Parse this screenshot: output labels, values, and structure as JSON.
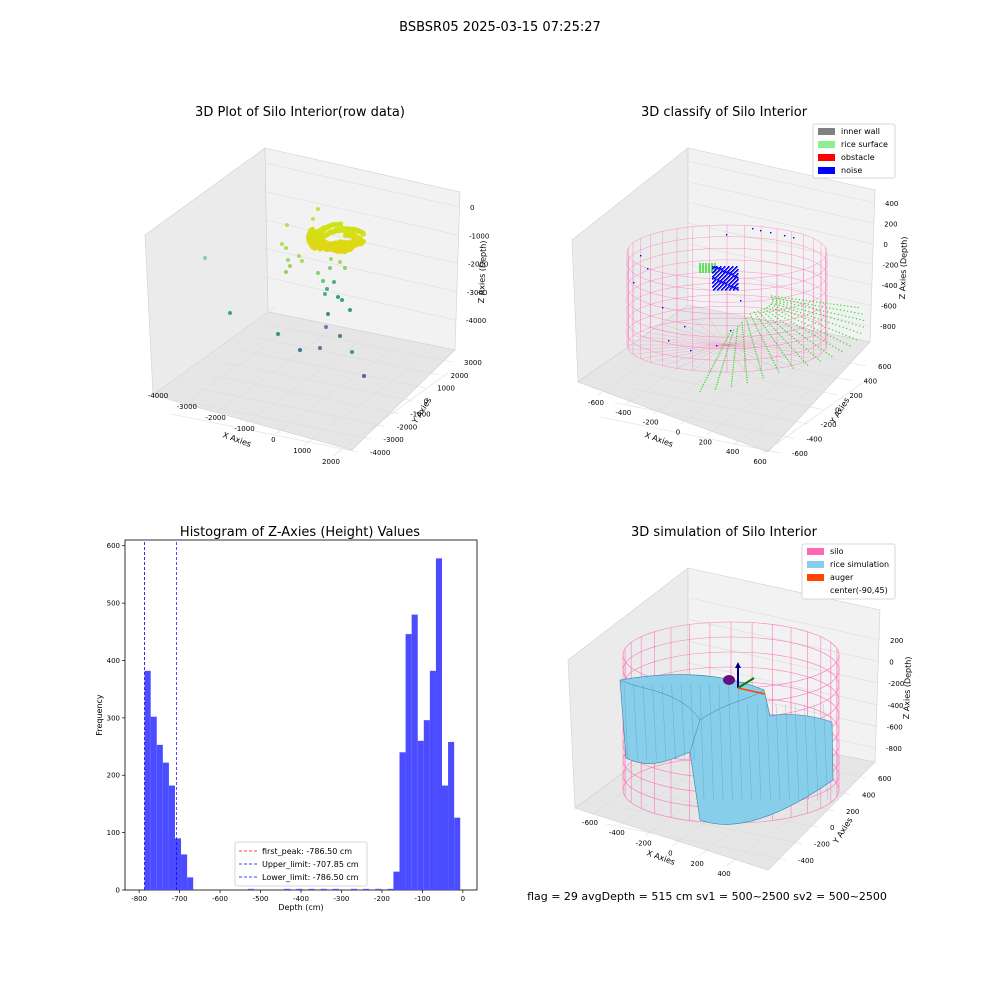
{
  "figure": {
    "suptitle": "BSBSR05 2025-03-15 07:25:27",
    "status": "flag = 29  avgDepth = 515 cm  sv1 = 500~2500  sv2 = 500~2500"
  },
  "colors": {
    "inner_wall": "#808080",
    "rice_surface": "#90ee90",
    "obstacle": "#ff0000",
    "noise": "#0000ff",
    "silo": "#ff69b4",
    "rice_simulation": "#87ceeb",
    "auger": "#ff4500",
    "hist_bar": "#4b4bff",
    "pane": "#f2f2f2",
    "pane_dark": "#e8e8e8",
    "grid": "#dcdcdc"
  },
  "chart_data": [
    {
      "type": "scatter",
      "title": "3D Plot of Silo Interior(row data)",
      "xlabel": "X Axies",
      "ylabel": "Y Axies",
      "zlabel": "Z Axies (Depth)",
      "x_ticks": [
        "-4000",
        "-3000",
        "-2000",
        "-1000",
        "0",
        "1000",
        "2000"
      ],
      "y_ticks": [
        "3000",
        "2000",
        "1000",
        "0",
        "-1000",
        "-2000",
        "-3000",
        "-4000"
      ],
      "z_ticks": [
        "0",
        "-1000",
        "-2000",
        "-3000",
        "-4000"
      ]
    },
    {
      "type": "scatter",
      "title": "3D classify of Silo Interior",
      "xlabel": "X Axies",
      "ylabel": "Y Axies",
      "zlabel": "Z Axies (Depth)",
      "x_ticks": [
        "-600",
        "-400",
        "-200",
        "0",
        "200",
        "400",
        "600"
      ],
      "y_ticks": [
        "600",
        "400",
        "200",
        "0",
        "-200",
        "-400",
        "-600"
      ],
      "z_ticks": [
        "400",
        "200",
        "0",
        "-200",
        "-400",
        "-600",
        "-800"
      ],
      "legend": [
        "inner wall",
        "rice surface",
        "obstacle",
        "noise"
      ],
      "legend_placement": "top-right"
    },
    {
      "type": "bar",
      "title": "Histogram of Z-Axies (Height) Values",
      "xlabel": "Depth (cm)",
      "ylabel": "Frequency",
      "xlim": [
        -835,
        35
      ],
      "ylim": [
        0,
        610
      ],
      "x_ticks": [
        -800,
        -700,
        -600,
        -500,
        -400,
        -300,
        -200,
        -100,
        0
      ],
      "y_ticks": [
        0,
        100,
        200,
        300,
        400,
        500,
        600
      ],
      "bin_width": 15,
      "bins": [
        {
          "x": -786.5,
          "v": 382
        },
        {
          "x": -771.5,
          "v": 302
        },
        {
          "x": -756.5,
          "v": 253
        },
        {
          "x": -741.5,
          "v": 222
        },
        {
          "x": -726.5,
          "v": 182
        },
        {
          "x": -711.5,
          "v": 90
        },
        {
          "x": -696.5,
          "v": 62
        },
        {
          "x": -681.5,
          "v": 22
        },
        {
          "x": -531.5,
          "v": 2
        },
        {
          "x": -441.5,
          "v": 2
        },
        {
          "x": -411.5,
          "v": 2
        },
        {
          "x": -381.5,
          "v": 2
        },
        {
          "x": -351.5,
          "v": 2
        },
        {
          "x": -321.5,
          "v": 2
        },
        {
          "x": -276.5,
          "v": 2
        },
        {
          "x": -246.5,
          "v": 2
        },
        {
          "x": -216.5,
          "v": 2
        },
        {
          "x": -186.5,
          "v": 2
        },
        {
          "x": -171.5,
          "v": 32
        },
        {
          "x": -156.5,
          "v": 240
        },
        {
          "x": -141.5,
          "v": 446
        },
        {
          "x": -126.5,
          "v": 480
        },
        {
          "x": -111.5,
          "v": 260
        },
        {
          "x": -96.5,
          "v": 296
        },
        {
          "x": -81.5,
          "v": 382
        },
        {
          "x": -66.5,
          "v": 578
        },
        {
          "x": -51.5,
          "v": 182
        },
        {
          "x": -36.5,
          "v": 258
        },
        {
          "x": -21.5,
          "v": 126
        }
      ],
      "vlines": [
        {
          "x": -786.5,
          "color": "#ff0000",
          "label": "first_peak: -786.50 cm"
        },
        {
          "x": -707.85,
          "color": "#0000ff",
          "label": "Upper_limit: -707.85 cm"
        },
        {
          "x": -786.5,
          "color": "#0000ff",
          "label": "Lower_limit: -786.50 cm"
        }
      ],
      "legend_placement": "lower-center"
    },
    {
      "type": "area",
      "title": "3D simulation of Silo Interior",
      "xlabel": "X Axies",
      "ylabel": "Y Axies",
      "zlabel": "Z Axies (Depth)",
      "x_ticks": [
        "-600",
        "-400",
        "-200",
        "0",
        "200",
        "400"
      ],
      "y_ticks": [
        "600",
        "400",
        "200",
        "0",
        "-200",
        "-400"
      ],
      "z_ticks": [
        "200",
        "0",
        "-200",
        "-400",
        "-600",
        "-800"
      ],
      "legend": [
        "silo",
        "rice simulation",
        "auger",
        "center(-90,45)"
      ],
      "legend_placement": "top-right"
    }
  ]
}
